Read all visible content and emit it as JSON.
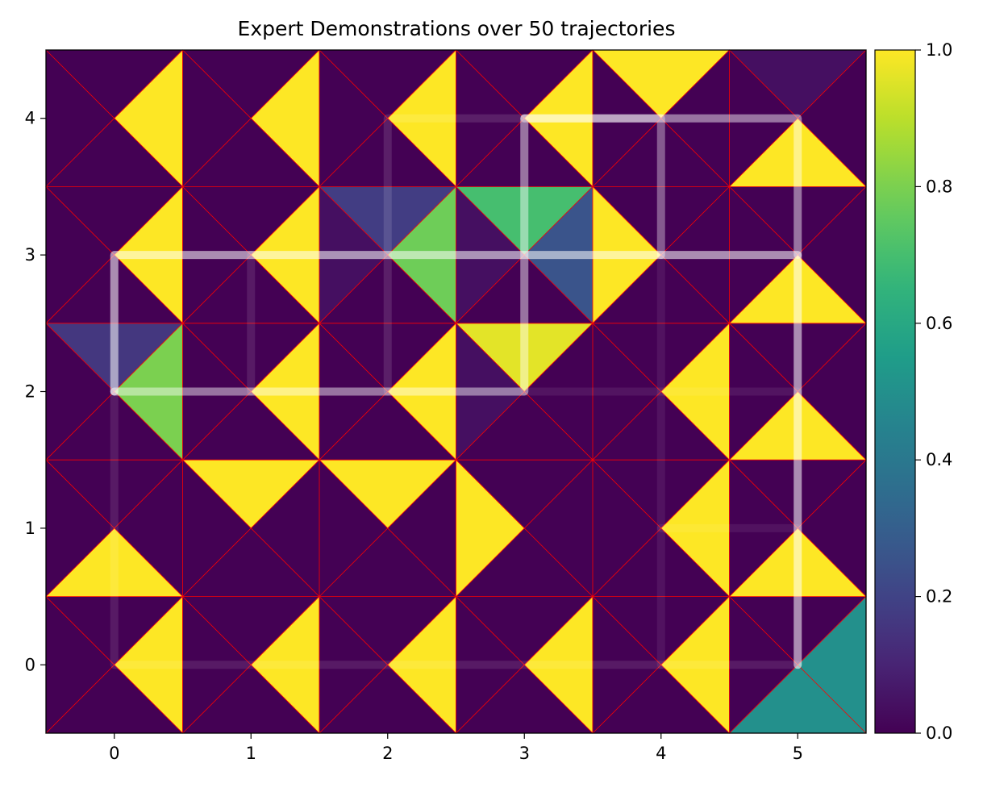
{
  "chart_data": {
    "type": "heatmap",
    "title": "Expert Demonstrations over 50 trajectories",
    "xlabel": "",
    "ylabel": "",
    "grid_width": 6,
    "grid_height": 5,
    "xlim": [
      -0.5,
      5.5
    ],
    "ylim": [
      -0.5,
      4.5
    ],
    "x_ticks": [
      0,
      1,
      2,
      3,
      4,
      5
    ],
    "y_ticks": [
      0,
      1,
      2,
      3,
      4
    ],
    "colormap": "viridis",
    "colorbar": {
      "min": 0.0,
      "max": 1.0,
      "ticks": [
        "0.0",
        "0.2",
        "0.4",
        "0.6",
        "0.8",
        "1.0"
      ]
    },
    "triangle_order": [
      "up",
      "right",
      "down",
      "left"
    ],
    "cells": [
      {
        "x": 0,
        "y": 0,
        "values": [
          0,
          1,
          0,
          0
        ]
      },
      {
        "x": 1,
        "y": 0,
        "values": [
          0,
          1,
          0,
          0
        ]
      },
      {
        "x": 2,
        "y": 0,
        "values": [
          0,
          1,
          0,
          0
        ]
      },
      {
        "x": 3,
        "y": 0,
        "values": [
          0,
          1,
          0,
          0
        ]
      },
      {
        "x": 4,
        "y": 0,
        "values": [
          0,
          1,
          0,
          0
        ]
      },
      {
        "x": 5,
        "y": 0,
        "values": [
          0,
          0.5,
          0.5,
          0
        ]
      },
      {
        "x": 0,
        "y": 1,
        "values": [
          0,
          0,
          1,
          0
        ]
      },
      {
        "x": 1,
        "y": 1,
        "values": [
          1,
          0,
          0,
          0
        ]
      },
      {
        "x": 2,
        "y": 1,
        "values": [
          1,
          0,
          0,
          0
        ]
      },
      {
        "x": 3,
        "y": 1,
        "values": [
          0,
          0,
          0,
          1
        ]
      },
      {
        "x": 4,
        "y": 1,
        "values": [
          0,
          1,
          0,
          0
        ]
      },
      {
        "x": 5,
        "y": 1,
        "values": [
          0,
          0,
          1,
          0
        ]
      },
      {
        "x": 0,
        "y": 2,
        "values": [
          0.16,
          0.8,
          0,
          0
        ]
      },
      {
        "x": 1,
        "y": 2,
        "values": [
          0,
          1,
          0,
          0
        ]
      },
      {
        "x": 2,
        "y": 2,
        "values": [
          0,
          1,
          0,
          0
        ]
      },
      {
        "x": 3,
        "y": 2,
        "values": [
          0.96,
          0,
          0,
          0.04
        ]
      },
      {
        "x": 4,
        "y": 2,
        "values": [
          0,
          1,
          0,
          0
        ]
      },
      {
        "x": 5,
        "y": 2,
        "values": [
          0,
          0,
          1,
          0
        ]
      },
      {
        "x": 0,
        "y": 3,
        "values": [
          0,
          1,
          0,
          0
        ]
      },
      {
        "x": 1,
        "y": 3,
        "values": [
          0,
          1,
          0,
          0
        ]
      },
      {
        "x": 2,
        "y": 3,
        "values": [
          0.18,
          0.78,
          0,
          0.04
        ]
      },
      {
        "x": 3,
        "y": 3,
        "values": [
          0.7,
          0.26,
          0,
          0.04
        ]
      },
      {
        "x": 4,
        "y": 3,
        "values": [
          0,
          0,
          0,
          1
        ]
      },
      {
        "x": 5,
        "y": 3,
        "values": [
          0,
          0,
          1,
          0
        ]
      },
      {
        "x": 0,
        "y": 4,
        "values": [
          0,
          1,
          0,
          0
        ]
      },
      {
        "x": 1,
        "y": 4,
        "values": [
          0,
          1,
          0,
          0
        ]
      },
      {
        "x": 2,
        "y": 4,
        "values": [
          0,
          1,
          0,
          0
        ]
      },
      {
        "x": 3,
        "y": 4,
        "values": [
          0,
          1,
          0,
          0
        ]
      },
      {
        "x": 4,
        "y": 4,
        "values": [
          1,
          0,
          0,
          0
        ]
      },
      {
        "x": 5,
        "y": 4,
        "values": [
          0.04,
          0,
          1,
          0
        ]
      }
    ],
    "trajectories": [
      {
        "path": [
          [
            0,
            2
          ],
          [
            0,
            3
          ],
          [
            1,
            3
          ],
          [
            2,
            3
          ],
          [
            3,
            3
          ],
          [
            4,
            3
          ],
          [
            5,
            3
          ],
          [
            5,
            2
          ],
          [
            5,
            1
          ],
          [
            5,
            0
          ]
        ],
        "opacity": 0.55
      },
      {
        "path": [
          [
            0,
            2
          ],
          [
            1,
            2
          ],
          [
            2,
            2
          ],
          [
            3,
            2
          ],
          [
            3,
            3
          ],
          [
            3,
            4
          ],
          [
            4,
            4
          ],
          [
            5,
            4
          ],
          [
            5,
            3
          ]
        ],
        "opacity": 0.45
      },
      {
        "path": [
          [
            3,
            4
          ],
          [
            4,
            4
          ],
          [
            4,
            3
          ]
        ],
        "opacity": 0.35
      },
      {
        "path": [
          [
            2,
            2
          ],
          [
            2,
            4
          ],
          [
            3,
            4
          ]
        ],
        "opacity": 0.12
      },
      {
        "path": [
          [
            1,
            2
          ],
          [
            1,
            3
          ]
        ],
        "opacity": 0.1
      },
      {
        "path": [
          [
            0,
            2
          ],
          [
            0,
            0
          ],
          [
            5,
            0
          ]
        ],
        "opacity": 0.1
      },
      {
        "path": [
          [
            3,
            2
          ],
          [
            5,
            2
          ]
        ],
        "opacity": 0.08
      },
      {
        "path": [
          [
            4,
            3
          ],
          [
            4,
            0
          ]
        ],
        "opacity": 0.07
      },
      {
        "path": [
          [
            4,
            1
          ],
          [
            5,
            1
          ]
        ],
        "opacity": 0.07
      }
    ]
  }
}
